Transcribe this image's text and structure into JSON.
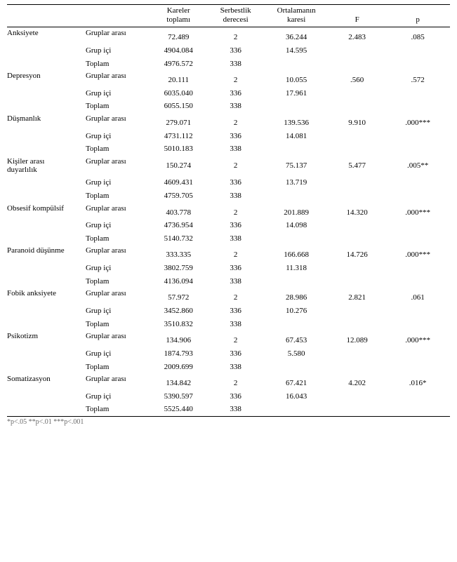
{
  "headers": {
    "kareler1": "Kareler",
    "kareler2": "toplamı",
    "serbest1": "Serbestlik",
    "serbest2": "derecesi",
    "ort1": "Ortalamanın",
    "ort2": "karesi",
    "f": "F",
    "p": "p"
  },
  "sourceLabels": {
    "ga": "Gruplar arası",
    "gi": "Grup içi",
    "tp": "Toplam"
  },
  "groups": [
    {
      "var": "Anksiyete",
      "ga": {
        "ss": "72.489",
        "df": "2",
        "ms": "36.244",
        "f": "2.483",
        "p": ".085"
      },
      "gi": {
        "ss": "4904.084",
        "df": "336",
        "ms": "14.595"
      },
      "tp": {
        "ss": "4976.572",
        "df": "338"
      }
    },
    {
      "var": "Depresyon",
      "ga": {
        "ss": "20.111",
        "df": "2",
        "ms": "10.055",
        "f": ".560",
        "p": ".572"
      },
      "gi": {
        "ss": "6035.040",
        "df": "336",
        "ms": "17.961"
      },
      "tp": {
        "ss": "6055.150",
        "df": "338"
      }
    },
    {
      "var": "Düşmanlık",
      "ga": {
        "ss": "279.071",
        "df": "2",
        "ms": "139.536",
        "f": "9.910",
        "p": ".000***"
      },
      "gi": {
        "ss": "4731.112",
        "df": "336",
        "ms": "14.081"
      },
      "tp": {
        "ss": "5010.183",
        "df": "338"
      }
    },
    {
      "var": "Kişiler arası",
      "var2": "duyarlılık",
      "ga": {
        "ss": "150.274",
        "df": "2",
        "ms": "75.137",
        "f": "5.477",
        "p": ".005**"
      },
      "gi": {
        "ss": "4609.431",
        "df": "336",
        "ms": "13.719"
      },
      "tp": {
        "ss": "4759.705",
        "df": "338"
      }
    },
    {
      "var": "Obsesif kompülsif",
      "ga": {
        "ss": "403.778",
        "df": "2",
        "ms": "201.889",
        "f": "14.320",
        "p": ".000***"
      },
      "gi": {
        "ss": "4736.954",
        "df": "336",
        "ms": "14.098"
      },
      "tp": {
        "ss": "5140.732",
        "df": "338"
      }
    },
    {
      "var": "Paranoid düşünme",
      "ga": {
        "ss": "333.335",
        "df": "2",
        "ms": "166.668",
        "f": "14.726",
        "p": ".000***"
      },
      "gi": {
        "ss": "3802.759",
        "df": "336",
        "ms": "11.318"
      },
      "tp": {
        "ss": "4136.094",
        "df": "338"
      }
    },
    {
      "var": "Fobik anksiyete",
      "ga": {
        "ss": "57.972",
        "df": "2",
        "ms": "28.986",
        "f": "2.821",
        "p": ".061"
      },
      "gi": {
        "ss": "3452.860",
        "df": "336",
        "ms": "10.276"
      },
      "tp": {
        "ss": "3510.832",
        "df": "338"
      }
    },
    {
      "var": "Psikotizm",
      "ga": {
        "ss": "134.906",
        "df": "2",
        "ms": "67.453",
        "f": "12.089",
        "p": ".000***"
      },
      "gi": {
        "ss": "1874.793",
        "df": "336",
        "ms": "5.580"
      },
      "tp": {
        "ss": "2009.699",
        "df": "338"
      }
    },
    {
      "var": "Somatizasyon",
      "ga": {
        "ss": "134.842",
        "df": "2",
        "ms": "67.421",
        "f": "4.202",
        "p": ".016*"
      },
      "gi": {
        "ss": "5390.597",
        "df": "336",
        "ms": "16.043"
      },
      "tp": {
        "ss": "5525.440",
        "df": "338"
      }
    }
  ],
  "footnote": "*p<.05    **p<.01    ***p<.001"
}
